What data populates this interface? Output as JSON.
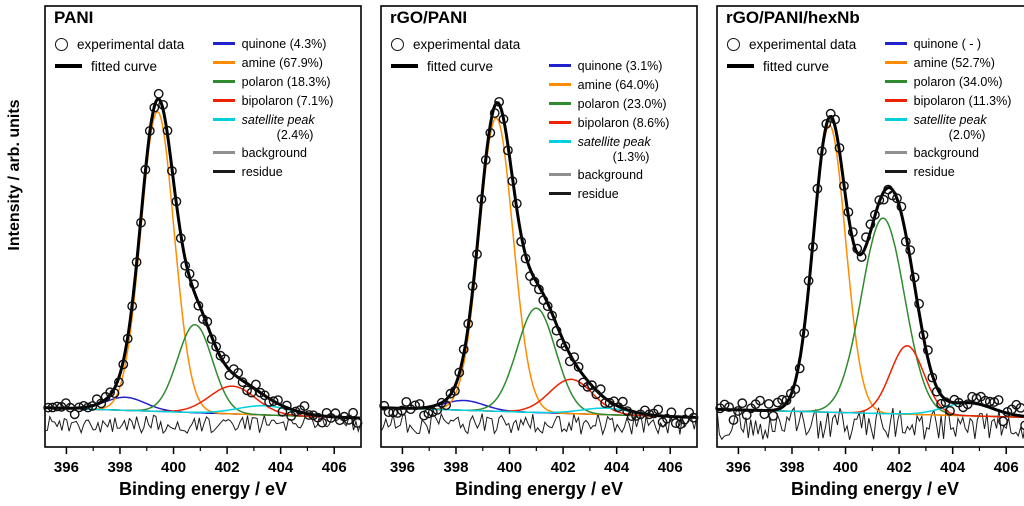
{
  "figure": {
    "xlabel": "Binding energy / eV",
    "ylabel": "Intensity / arb. units",
    "legend_common": {
      "experimental": "experimental data",
      "fitted": "fitted curve"
    },
    "colors": {
      "experimental": "#111111",
      "fitted": "#000000",
      "background": "#8f8f8f",
      "residue": "#1a1a1a"
    }
  },
  "chart_data": [
    {
      "type": "line",
      "title": "PANI",
      "xlabel": "Binding energy / eV",
      "ylabel": "Intensity / arb. units",
      "xlim": [
        395.2,
        407.0
      ],
      "ylim": [
        0,
        1.28
      ],
      "xticks": [
        396,
        398,
        400,
        402,
        404,
        406
      ],
      "components": [
        {
          "name": "quinone",
          "label": "quinone (4.3%)",
          "percent": 4.3,
          "color": "#2222cc",
          "center": 398.2,
          "sigma": 0.75,
          "amp": 0.04
        },
        {
          "name": "amine",
          "label": "amine (67.9%)",
          "percent": 67.9,
          "color": "#ff8c00",
          "center": 399.4,
          "sigma": 0.62,
          "amp": 0.92
        },
        {
          "name": "polaron",
          "label": "polaron (18.3%)",
          "percent": 18.3,
          "color": "#2e8b2e",
          "center": 400.8,
          "sigma": 0.65,
          "amp": 0.27
        },
        {
          "name": "bipolaron",
          "label": "bipolaron (7.1%)",
          "percent": 7.1,
          "color": "#ee2200",
          "center": 402.2,
          "sigma": 0.85,
          "amp": 0.085
        },
        {
          "name": "satellite",
          "label": "satellite peak",
          "label2": "(2.4%)",
          "percent": 2.4,
          "color": "#00d0dd",
          "center": 403.4,
          "sigma": 1.0,
          "amp": 0.028
        },
        {
          "name": "background",
          "label": "background",
          "color": "#8f8f8f"
        },
        {
          "name": "residue",
          "label": "residue",
          "color": "#1a1a1a"
        }
      ],
      "background": {
        "left": 0.05,
        "right": 0.018
      },
      "noise": {
        "data": 0.045,
        "residue": 0.028,
        "seed": 11
      }
    },
    {
      "type": "line",
      "title": "rGO/PANI",
      "xlabel": "Binding energy / eV",
      "ylabel": "Intensity / arb. units",
      "xlim": [
        395.2,
        407.0
      ],
      "ylim": [
        0,
        1.28
      ],
      "xticks": [
        396,
        398,
        400,
        402,
        404,
        406
      ],
      "components": [
        {
          "name": "quinone",
          "label": "quinone (3.1%)",
          "percent": 3.1,
          "color": "#2222cc",
          "center": 398.3,
          "sigma": 0.75,
          "amp": 0.03
        },
        {
          "name": "amine",
          "label": "amine (64.0%)",
          "percent": 64.0,
          "color": "#ff8c00",
          "center": 399.5,
          "sigma": 0.63,
          "amp": 0.9
        },
        {
          "name": "polaron",
          "label": "polaron (23.0%)",
          "percent": 23.0,
          "color": "#2e8b2e",
          "center": 401.0,
          "sigma": 0.72,
          "amp": 0.32
        },
        {
          "name": "bipolaron",
          "label": "bipolaron (8.6%)",
          "percent": 8.6,
          "color": "#ee2200",
          "center": 402.3,
          "sigma": 0.8,
          "amp": 0.105
        },
        {
          "name": "satellite",
          "label": "satellite peak",
          "label2": "(1.3%)",
          "percent": 1.3,
          "color": "#00d0dd",
          "center": 403.6,
          "sigma": 0.9,
          "amp": 0.02
        },
        {
          "name": "background",
          "label": "background",
          "color": "#8f8f8f"
        },
        {
          "name": "residue",
          "label": "residue",
          "color": "#1a1a1a"
        }
      ],
      "background": {
        "left": 0.05,
        "right": 0.02
      },
      "noise": {
        "data": 0.05,
        "residue": 0.032,
        "seed": 22
      }
    },
    {
      "type": "line",
      "title": "rGO/PANI/hexNb",
      "xlabel": "Binding energy / eV",
      "ylabel": "Intensity / arb. units",
      "xlim": [
        395.2,
        407.0
      ],
      "ylim": [
        0,
        1.28
      ],
      "xticks": [
        396,
        398,
        400,
        402,
        404,
        406
      ],
      "components": [
        {
          "name": "quinone",
          "label": "quinone ( - )",
          "percent": null,
          "color": "#2222cc"
        },
        {
          "name": "amine",
          "label": "amine (52.7%)",
          "percent": 52.7,
          "color": "#ff8c00",
          "center": 399.4,
          "sigma": 0.6,
          "amp": 0.88
        },
        {
          "name": "polaron",
          "label": "polaron (34.0%)",
          "percent": 34.0,
          "color": "#2e8b2e",
          "center": 401.4,
          "sigma": 0.8,
          "amp": 0.6
        },
        {
          "name": "bipolaron",
          "label": "bipolaron (11.3%)",
          "percent": 11.3,
          "color": "#ee2200",
          "center": 402.3,
          "sigma": 0.62,
          "amp": 0.21
        },
        {
          "name": "satellite",
          "label": "satellite peak",
          "label2": "(2.0%)",
          "percent": 2.0,
          "color": "#00d0dd",
          "center": 404.6,
          "sigma": 0.9,
          "amp": 0.04
        },
        {
          "name": "background",
          "label": "background",
          "color": "#8f8f8f"
        },
        {
          "name": "residue",
          "label": "residue",
          "color": "#1a1a1a"
        }
      ],
      "background": {
        "left": 0.045,
        "right": 0.02
      },
      "noise": {
        "data": 0.065,
        "residue": 0.05,
        "seed": 33
      }
    }
  ]
}
